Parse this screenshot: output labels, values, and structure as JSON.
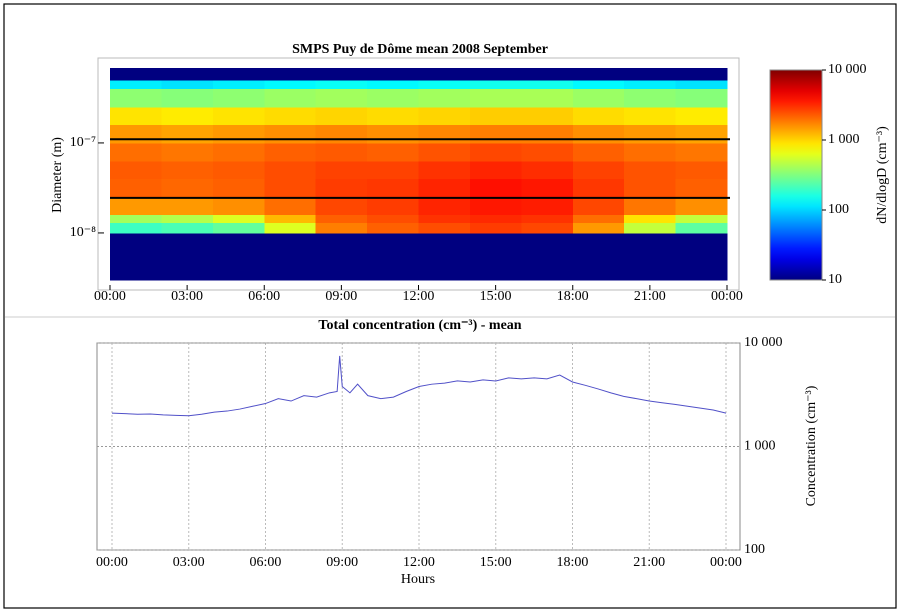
{
  "chart_data": [
    {
      "type": "heatmap",
      "title": "SMPS Puy de Dôme mean 2008 September",
      "y_label": "Diameter (m)",
      "colorbar_label": "dN/dlogD (cm⁻³)",
      "xlim": [
        0,
        24
      ],
      "xticks": [
        {
          "value": 0,
          "label": "00:00"
        },
        {
          "value": 3,
          "label": "03:00"
        },
        {
          "value": 6,
          "label": "06:00"
        },
        {
          "value": 9,
          "label": "09:00"
        },
        {
          "value": 12,
          "label": "12:00"
        },
        {
          "value": 15,
          "label": "15:00"
        },
        {
          "value": 18,
          "label": "18:00"
        },
        {
          "value": 21,
          "label": "21:00"
        },
        {
          "value": 24,
          "label": "00:00"
        }
      ],
      "ylim": [
        3e-09,
        6.8e-07
      ],
      "ylog": true,
      "yticks": [
        {
          "value": 1e-08,
          "label": "10⁻⁸"
        },
        {
          "value": 1e-07,
          "label": "10⁻⁷"
        }
      ],
      "zlim": [
        10,
        10000
      ],
      "zlog": true,
      "zticks": [
        10,
        100,
        {
          "value": 1000,
          "label": "1 000"
        },
        {
          "value": 10000,
          "label": "10 000"
        }
      ],
      "x_edges": [
        0,
        2,
        4,
        6,
        8,
        10,
        12,
        14,
        16,
        18,
        20,
        22,
        24
      ],
      "y_edges": [
        3e-09,
        1e-08,
        1.3e-08,
        1.6e-08,
        2.5e-08,
        4e-08,
        6.3e-08,
        1e-07,
        1.6e-07,
        2.5e-07,
        4e-07,
        5e-07,
        6.8e-07
      ],
      "values": [
        [
          10,
          10,
          10,
          10,
          10,
          10,
          10,
          10,
          10,
          10,
          10,
          10
        ],
        [
          200,
          220,
          260,
          600,
          1800,
          2200,
          2500,
          2800,
          2600,
          1500,
          500,
          250
        ],
        [
          400,
          450,
          600,
          1200,
          2200,
          2500,
          3000,
          3200,
          3000,
          2000,
          900,
          500
        ],
        [
          1500,
          1500,
          1600,
          2000,
          2600,
          2800,
          3300,
          3600,
          3500,
          2600,
          1900,
          1600
        ],
        [
          2200,
          2100,
          2200,
          2500,
          2800,
          2900,
          3300,
          3800,
          3600,
          2900,
          2400,
          2200
        ],
        [
          2300,
          2200,
          2300,
          2500,
          2700,
          2700,
          3000,
          3300,
          3100,
          2700,
          2400,
          2300
        ],
        [
          2000,
          1900,
          2000,
          2200,
          2300,
          2200,
          2400,
          2600,
          2500,
          2200,
          2000,
          1900
        ],
        [
          1500,
          1400,
          1500,
          1600,
          1700,
          1600,
          1700,
          1800,
          1800,
          1600,
          1500,
          1400
        ],
        [
          900,
          850,
          900,
          950,
          1000,
          950,
          1000,
          1050,
          1050,
          950,
          900,
          850
        ],
        [
          350,
          330,
          350,
          380,
          400,
          380,
          400,
          420,
          420,
          380,
          350,
          330
        ],
        [
          120,
          110,
          120,
          130,
          140,
          130,
          140,
          150,
          150,
          130,
          120,
          110
        ],
        [
          10,
          10,
          10,
          10,
          10,
          10,
          10,
          10,
          10,
          10,
          10,
          10
        ]
      ],
      "hlines": [
        1.1e-07,
        2.45e-08
      ],
      "hline_color": "#000000"
    },
    {
      "type": "line",
      "title": "Total concentration (cm⁻³) - mean",
      "x_label": "Hours",
      "y_label": "Concentration (cm⁻³)",
      "xlim": [
        0,
        24
      ],
      "xticks": [
        {
          "value": 0,
          "label": "00:00"
        },
        {
          "value": 3,
          "label": "03:00"
        },
        {
          "value": 6,
          "label": "06:00"
        },
        {
          "value": 9,
          "label": "09:00"
        },
        {
          "value": 12,
          "label": "12:00"
        },
        {
          "value": 15,
          "label": "15:00"
        },
        {
          "value": 18,
          "label": "18:00"
        },
        {
          "value": 21,
          "label": "21:00"
        },
        {
          "value": 24,
          "label": "00:00"
        }
      ],
      "ylim": [
        100,
        10000
      ],
      "ylog": true,
      "yticks": [
        100,
        {
          "value": 1000,
          "label": "1 000"
        },
        {
          "value": 10000,
          "label": "10 000"
        }
      ],
      "grid": true,
      "x": [
        0,
        0.5,
        1,
        1.5,
        2,
        2.5,
        3,
        3.5,
        4,
        4.5,
        5,
        5.5,
        6,
        6.5,
        7,
        7.5,
        8,
        8.5,
        8.8,
        8.9,
        9,
        9.3,
        9.6,
        10,
        10.5,
        11,
        11.5,
        12,
        12.5,
        13,
        13.5,
        14,
        14.5,
        15,
        15.5,
        16,
        16.5,
        17,
        17.5,
        18,
        18.5,
        19,
        19.5,
        20,
        20.5,
        21,
        21.5,
        22,
        22.5,
        23,
        23.5,
        24
      ],
      "series": [
        {
          "color": "#5050c8",
          "values": [
            2100,
            2080,
            2050,
            2060,
            2020,
            2000,
            1980,
            2050,
            2150,
            2200,
            2300,
            2450,
            2600,
            2900,
            2750,
            3100,
            3000,
            3300,
            3400,
            7500,
            3800,
            3300,
            4000,
            3100,
            2900,
            3000,
            3400,
            3800,
            4000,
            4100,
            4300,
            4200,
            4400,
            4300,
            4600,
            4500,
            4600,
            4500,
            4900,
            4200,
            3900,
            3600,
            3300,
            3050,
            2900,
            2750,
            2650,
            2550,
            2450,
            2350,
            2250,
            2100
          ]
        }
      ]
    }
  ]
}
